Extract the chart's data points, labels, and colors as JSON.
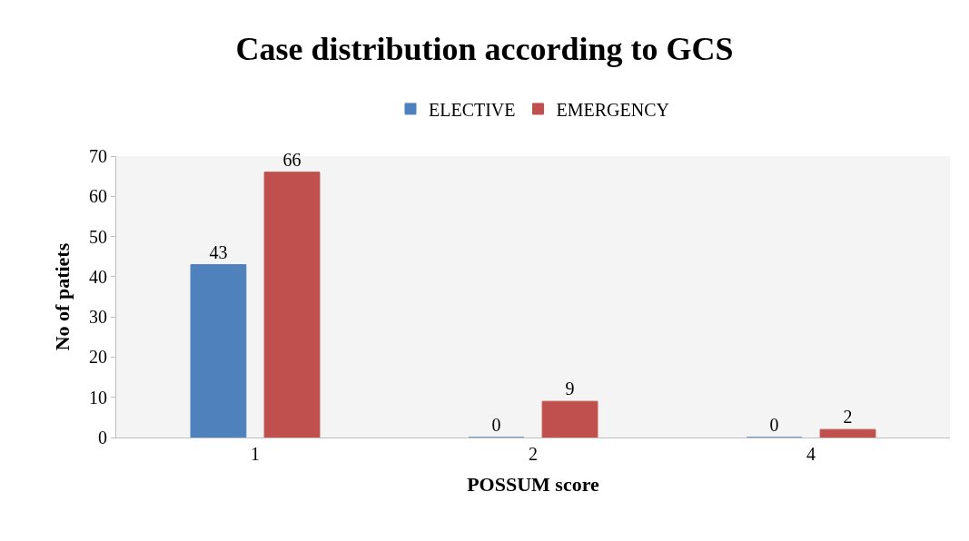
{
  "chart_data": {
    "type": "bar",
    "title": "Case distribution according to GCS",
    "xlabel": "POSSUM score",
    "ylabel": "No of patiets",
    "categories": [
      "1",
      "2",
      "4"
    ],
    "series": [
      {
        "name": "ELECTIVE",
        "color": "#4f81bd",
        "values": [
          43,
          0,
          0
        ]
      },
      {
        "name": "EMERGENCY",
        "color": "#c0504d",
        "values": [
          66,
          9,
          2
        ]
      }
    ],
    "ylim": [
      0,
      70
    ],
    "yticks": [
      0,
      10,
      20,
      30,
      40,
      50,
      60,
      70
    ],
    "grid": false,
    "legend": "top",
    "data_labels": true
  }
}
